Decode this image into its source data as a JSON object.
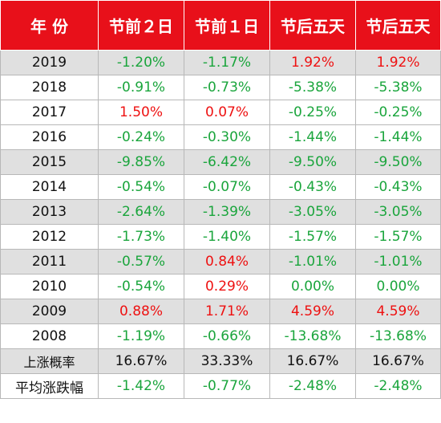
{
  "columns": [
    "年  份",
    "节前２日",
    "节前１日",
    "节后五天",
    "节后五天"
  ],
  "colors": {
    "header_bg": "#e8101a",
    "header_text": "#ffffff",
    "negative": "#1aa53c",
    "positive": "#ee1111",
    "shade_row": "#e0e0e0"
  },
  "rows": [
    {
      "year": "2019",
      "v": [
        "-1.20%",
        "-1.17%",
        "1.92%",
        "1.92%"
      ]
    },
    {
      "year": "2018",
      "v": [
        "-0.91%",
        "-0.73%",
        "-5.38%",
        "-5.38%"
      ]
    },
    {
      "year": "2017",
      "v": [
        "1.50%",
        "0.07%",
        "-0.25%",
        "-0.25%"
      ]
    },
    {
      "year": "2016",
      "v": [
        "-0.24%",
        "-0.30%",
        "-1.44%",
        "-1.44%"
      ]
    },
    {
      "year": "2015",
      "v": [
        "-9.85%",
        "-6.42%",
        "-9.50%",
        "-9.50%"
      ]
    },
    {
      "year": "2014",
      "v": [
        "-0.54%",
        "-0.07%",
        "-0.43%",
        "-0.43%"
      ]
    },
    {
      "year": "2013",
      "v": [
        "-2.64%",
        "-1.39%",
        "-3.05%",
        "-3.05%"
      ]
    },
    {
      "year": "2012",
      "v": [
        "-1.73%",
        "-1.40%",
        "-1.57%",
        "-1.57%"
      ]
    },
    {
      "year": "2011",
      "v": [
        "-0.57%",
        "0.84%",
        "-1.01%",
        "-1.01%"
      ]
    },
    {
      "year": "2010",
      "v": [
        "-0.54%",
        "0.29%",
        "0.00%",
        "0.00%"
      ]
    },
    {
      "year": "2009",
      "v": [
        "0.88%",
        "1.71%",
        "4.59%",
        "4.59%"
      ]
    },
    {
      "year": "2008",
      "v": [
        "-1.19%",
        "-0.66%",
        "-13.68%",
        "-13.68%"
      ]
    }
  ],
  "summary": [
    {
      "label": "上涨概率",
      "v": [
        "16.67%",
        "33.33%",
        "16.67%",
        "16.67%"
      ]
    },
    {
      "label": "平均涨跌幅",
      "v": [
        "-1.42%",
        "-0.77%",
        "-2.48%",
        "-2.48%"
      ]
    }
  ]
}
